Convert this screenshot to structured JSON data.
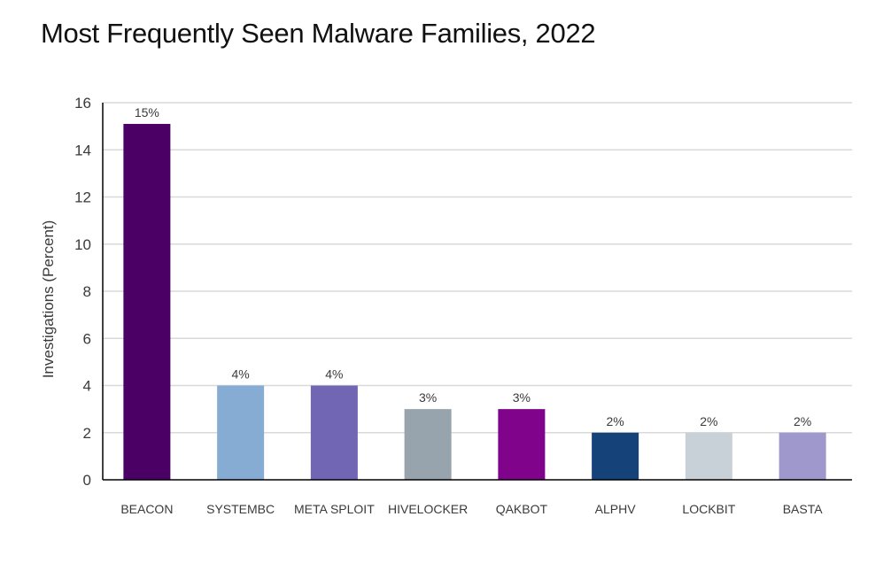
{
  "chart_data": {
    "type": "bar",
    "title": "Most Frequently Seen Malware Families, 2022",
    "xlabel": "",
    "ylabel": "Investigations (Percent)",
    "ylim": [
      0,
      16
    ],
    "yticks": [
      0,
      2,
      4,
      6,
      8,
      10,
      12,
      14,
      16
    ],
    "grid": true,
    "legend": "none",
    "categories": [
      "BEACON",
      "SYSTEMBC",
      "META SPLOIT",
      "HIVELOCKER",
      "QAKBOT",
      "ALPHV",
      "LOCKBIT",
      "BASTA"
    ],
    "values": [
      15.1,
      4,
      4,
      3,
      3,
      2,
      2,
      2
    ],
    "data_labels": [
      "15%",
      "4%",
      "4%",
      "3%",
      "3%",
      "2%",
      "2%",
      "2%"
    ],
    "colors": [
      "#4b0066",
      "#86acd3",
      "#7066b3",
      "#97a4ae",
      "#80038c",
      "#16427a",
      "#c9d1d8",
      "#9f98cc"
    ]
  }
}
